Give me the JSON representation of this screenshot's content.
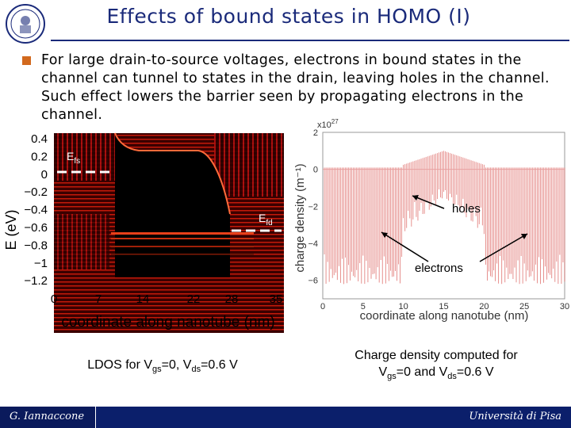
{
  "header": {
    "title": "Effects of bound states in HOMO (I)"
  },
  "bullet": {
    "text": "For large drain-to-source voltages, electrons in bound states in the channel can tunnel to states in the drain, leaving holes in the channel. Such effect lowers the barrier seen by propagating electrons in the channel."
  },
  "chart_data": [
    {
      "type": "heatmap",
      "title": "",
      "xlabel": "coordinate along nanotube (nm)",
      "ylabel": "E (eV)",
      "xticks": [
        "0",
        "7",
        "14",
        "22",
        "28",
        "35"
      ],
      "yticks": [
        "0.4",
        "0.2",
        "0",
        "−0.2",
        "−0.4",
        "−0.6",
        "−0.8",
        "−1",
        "−1.2"
      ],
      "xlim": [
        0,
        35
      ],
      "ylim": [
        -1.3,
        0.4
      ],
      "annotations": [
        {
          "text": "E",
          "sub": "fs",
          "level": 0.0
        },
        {
          "text": "E",
          "sub": "fd",
          "level": -0.6
        }
      ]
    },
    {
      "type": "bar",
      "title": "",
      "xlabel": "coordinate along nanotube (nm)",
      "ylabel": "charge density (m⁻¹)",
      "exponent_label": "x10",
      "exponent_sup": "27",
      "xticks": [
        "0",
        "5",
        "10",
        "15",
        "20",
        "25",
        "30"
      ],
      "yticks": [
        "2",
        "0",
        "−2",
        "−4",
        "−6"
      ],
      "xlim": [
        0,
        30
      ],
      "ylim": [
        -7,
        2
      ],
      "annotations": [
        "holes",
        "electrons"
      ],
      "series_color": "#d9534f"
    }
  ],
  "captions": {
    "left_main": "LDOS for V",
    "left_sub1": "gs",
    "left_mid": "=0, V",
    "left_sub2": "ds",
    "left_end": "=0.6 V",
    "right_line1": "Charge density computed for",
    "right_v1": "V",
    "right_sub1": "gs",
    "right_mid": "=0 and V",
    "right_sub2": "ds",
    "right_end": "=0.6 V"
  },
  "footer": {
    "author": "G. Iannaccone",
    "university": "Università di Pisa"
  }
}
